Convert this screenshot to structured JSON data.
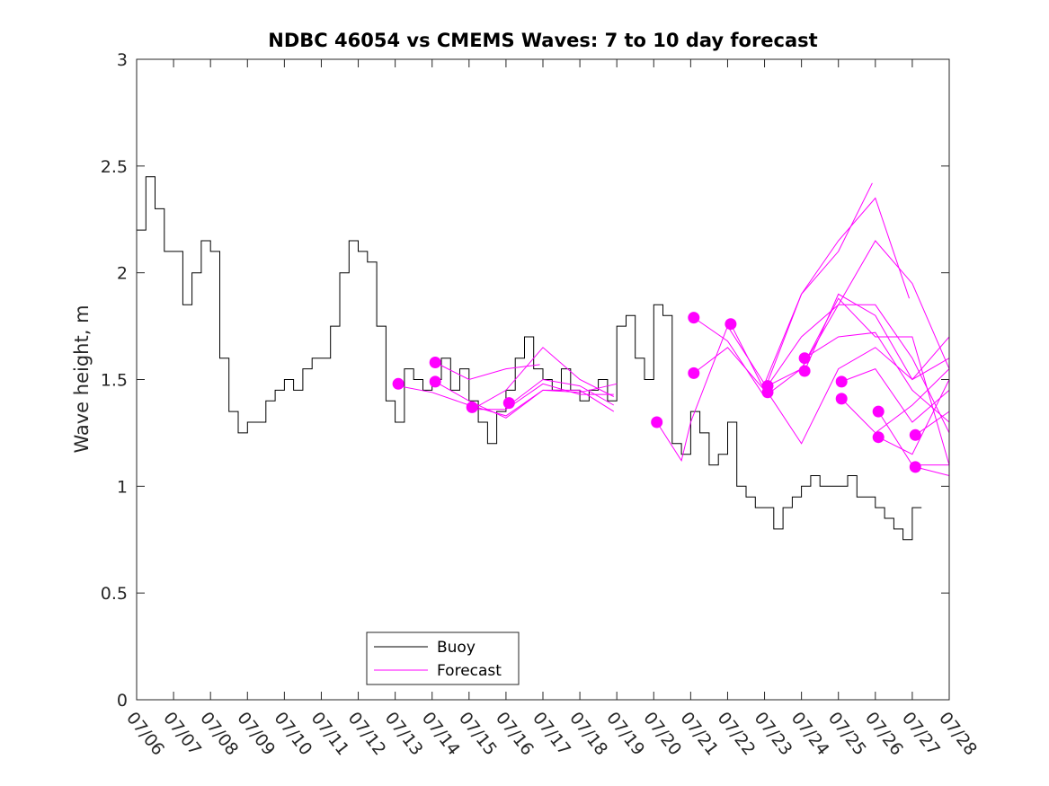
{
  "chart_data": {
    "type": "line",
    "title": "NDBC 46054 vs CMEMS Waves: 7 to 10 day forecast",
    "xlabel": "",
    "ylabel": "Wave height, m",
    "ylim": [
      0,
      3
    ],
    "xlim": [
      "07/06",
      "07/28"
    ],
    "x_ticks": [
      "07/06",
      "07/07",
      "07/08",
      "07/09",
      "07/10",
      "07/11",
      "07/12",
      "07/13",
      "07/14",
      "07/15",
      "07/16",
      "07/17",
      "07/18",
      "07/19",
      "07/20",
      "07/21",
      "07/22",
      "07/23",
      "07/24",
      "07/25",
      "07/26",
      "07/27",
      "07/28"
    ],
    "y_ticks": [
      "0",
      "0.5",
      "1",
      "1.5",
      "2",
      "2.5",
      "3"
    ],
    "grid": false,
    "legend_position": "bottom-left",
    "colors": {
      "buoy": "#000000",
      "forecast": "#ff00ff"
    },
    "series": [
      {
        "name": "Buoy",
        "x": [
          "07/06 00:00",
          "07/06 06:00",
          "07/06 12:00",
          "07/06 18:00",
          "07/07 00:00",
          "07/07 06:00",
          "07/07 12:00",
          "07/07 18:00",
          "07/08 00:00",
          "07/08 06:00",
          "07/08 12:00",
          "07/08 18:00",
          "07/09 00:00",
          "07/09 06:00",
          "07/09 12:00",
          "07/09 18:00",
          "07/10 00:00",
          "07/10 06:00",
          "07/10 12:00",
          "07/10 18:00",
          "07/11 00:00",
          "07/11 06:00",
          "07/11 12:00",
          "07/11 18:00",
          "07/12 00:00",
          "07/12 06:00",
          "07/12 12:00",
          "07/12 18:00",
          "07/13 00:00",
          "07/13 06:00",
          "07/13 12:00",
          "07/13 18:00",
          "07/14 00:00",
          "07/14 06:00",
          "07/14 12:00",
          "07/14 18:00",
          "07/15 00:00",
          "07/15 06:00",
          "07/15 12:00",
          "07/15 18:00",
          "07/16 00:00",
          "07/16 06:00",
          "07/16 12:00",
          "07/16 18:00",
          "07/17 00:00",
          "07/17 06:00",
          "07/17 12:00",
          "07/17 18:00",
          "07/18 00:00",
          "07/18 06:00",
          "07/18 12:00",
          "07/18 18:00",
          "07/19 00:00",
          "07/19 06:00",
          "07/19 12:00",
          "07/19 18:00",
          "07/20 00:00",
          "07/20 06:00",
          "07/20 12:00",
          "07/20 18:00",
          "07/21 00:00",
          "07/21 06:00",
          "07/21 12:00",
          "07/21 18:00",
          "07/22 00:00",
          "07/22 06:00",
          "07/22 12:00",
          "07/22 18:00",
          "07/23 00:00",
          "07/23 06:00",
          "07/23 12:00",
          "07/23 18:00",
          "07/24 00:00",
          "07/24 06:00",
          "07/24 12:00",
          "07/24 18:00",
          "07/25 00:00",
          "07/25 06:00",
          "07/25 12:00",
          "07/25 18:00",
          "07/26 00:00",
          "07/26 06:00",
          "07/26 12:00",
          "07/26 18:00",
          "07/27 00:00",
          "07/27 06:00"
        ],
        "values": [
          2.2,
          2.45,
          2.3,
          2.1,
          2.1,
          1.85,
          2.0,
          2.15,
          2.1,
          1.6,
          1.35,
          1.25,
          1.3,
          1.3,
          1.4,
          1.45,
          1.5,
          1.45,
          1.55,
          1.6,
          1.6,
          1.75,
          2.0,
          2.15,
          2.1,
          2.05,
          1.75,
          1.4,
          1.3,
          1.55,
          1.5,
          1.45,
          1.5,
          1.6,
          1.45,
          1.55,
          1.4,
          1.3,
          1.2,
          1.35,
          1.45,
          1.6,
          1.7,
          1.55,
          1.5,
          1.45,
          1.55,
          1.45,
          1.4,
          1.45,
          1.5,
          1.4,
          1.75,
          1.8,
          1.6,
          1.5,
          1.85,
          1.8,
          1.2,
          1.15,
          1.35,
          1.25,
          1.1,
          1.15,
          1.3,
          1.0,
          0.95,
          0.9,
          0.9,
          0.8,
          0.9,
          0.95,
          1.0,
          1.05,
          1.0,
          1.0,
          1.0,
          1.05,
          0.95,
          0.95,
          0.9,
          0.85,
          0.8,
          0.75,
          0.9,
          0.9
        ]
      },
      {
        "name": "Forecast",
        "runs": [
          {
            "x": [
              "07/13 02:00",
              "07/14 00:00",
              "07/15 00:00",
              "07/16 00:00",
              "07/17 00:00",
              "07/18 00:00",
              "07/18 22:00"
            ],
            "values": [
              1.47,
              1.44,
              1.38,
              1.33,
              1.45,
              1.45,
              1.35
            ]
          },
          {
            "x": [
              "07/14 02:00",
              "07/15 00:00",
              "07/16 00:00",
              "07/16 22:00"
            ],
            "values": [
              1.58,
              1.5,
              1.55,
              1.57
            ]
          },
          {
            "x": [
              "07/14 02:00",
              "07/15 00:00",
              "07/16 00:00",
              "07/17 00:00",
              "07/18 00:00",
              "07/19 00:00"
            ],
            "values": [
              1.49,
              1.4,
              1.32,
              1.45,
              1.44,
              1.48
            ]
          },
          {
            "x": [
              "07/15 02:00",
              "07/16 00:00",
              "07/17 00:00",
              "07/18 00:00",
              "07/18 22:00"
            ],
            "values": [
              1.36,
              1.36,
              1.48,
              1.43,
              1.43
            ]
          },
          {
            "x": [
              "07/15 02:00",
              "07/16 00:00",
              "07/17 00:00",
              "07/18 00:00",
              "07/18 22:00"
            ],
            "values": [
              1.36,
              1.45,
              1.65,
              1.5,
              1.42
            ]
          },
          {
            "x": [
              "07/16 02:00",
              "07/17 00:00",
              "07/18 00:00",
              "07/18 22:00"
            ],
            "values": [
              1.38,
              1.5,
              1.47,
              1.38
            ]
          },
          {
            "x": [
              "07/20 02:00",
              "07/20 18:00",
              "07/21 00:00",
              "07/22 00:00",
              "07/23 00:00",
              "07/24 00:00",
              "07/25 00:00",
              "07/26 00:00",
              "07/26 22:00"
            ],
            "values": [
              1.3,
              1.12,
              1.3,
              1.75,
              1.48,
              1.9,
              2.15,
              2.35,
              1.88
            ]
          },
          {
            "x": [
              "07/21 02:00",
              "07/22 00:00",
              "07/23 00:00",
              "07/24 00:00",
              "07/25 00:00",
              "07/26 00:00",
              "07/27 00:00",
              "07/28 00:00"
            ],
            "values": [
              1.79,
              1.68,
              1.42,
              1.55,
              1.85,
              2.15,
              1.95,
              1.55
            ]
          },
          {
            "x": [
              "07/21 02:00",
              "07/22 00:00",
              "07/23 00:00",
              "07/24 00:00",
              "07/25 00:00",
              "07/25 22:00"
            ],
            "values": [
              1.53,
              1.65,
              1.45,
              1.9,
              2.1,
              2.42
            ]
          },
          {
            "x": [
              "07/22 02:00",
              "07/23 00:00",
              "07/24 00:00",
              "07/25 00:00",
              "07/26 00:00",
              "07/27 00:00",
              "07/28 00:00"
            ],
            "values": [
              1.76,
              1.45,
              1.7,
              1.85,
              1.85,
              1.6,
              1.25
            ]
          },
          {
            "x": [
              "07/23 02:00",
              "07/24 00:00",
              "07/25 00:00",
              "07/26 00:00",
              "07/27 00:00",
              "07/28 00:00"
            ],
            "values": [
              1.47,
              1.55,
              1.88,
              1.7,
              1.7,
              1.1
            ]
          },
          {
            "x": [
              "07/23 02:00",
              "07/24 00:00",
              "07/25 00:00",
              "07/26 00:00",
              "07/27 00:00",
              "07/28 00:00"
            ],
            "values": [
              1.44,
              1.2,
              1.55,
              1.65,
              1.5,
              1.6
            ]
          },
          {
            "x": [
              "07/24 02:00",
              "07/25 00:00",
              "07/26 00:00",
              "07/27 00:00",
              "07/28 00:00"
            ],
            "values": [
              1.6,
              1.7,
              1.72,
              1.45,
              1.3
            ]
          },
          {
            "x": [
              "07/24 02:00",
              "07/25 00:00",
              "07/26 00:00",
              "07/27 00:00",
              "07/28 00:00"
            ],
            "values": [
              1.54,
              1.9,
              1.8,
              1.5,
              1.7
            ]
          },
          {
            "x": [
              "07/25 02:00",
              "07/26 00:00",
              "07/27 00:00",
              "07/28 00:00"
            ],
            "values": [
              1.49,
              1.55,
              1.3,
              1.45
            ]
          },
          {
            "x": [
              "07/25 02:00",
              "07/26 00:00",
              "07/27 00:00",
              "07/28 00:00"
            ],
            "values": [
              1.41,
              1.25,
              1.38,
              1.55
            ]
          },
          {
            "x": [
              "07/26 02:00",
              "07/27 00:00",
              "07/28 00:00"
            ],
            "values": [
              1.35,
              1.1,
              1.1
            ]
          },
          {
            "x": [
              "07/26 02:00",
              "07/27 00:00",
              "07/28 00:00"
            ],
            "values": [
              1.23,
              1.15,
              1.5
            ]
          },
          {
            "x": [
              "07/27 02:00",
              "07/28 00:00"
            ],
            "values": [
              1.24,
              1.35
            ]
          },
          {
            "x": [
              "07/27 02:00",
              "07/28 00:00"
            ],
            "values": [
              1.09,
              1.05
            ]
          }
        ],
        "markers_x": [
          "07/13 02:00",
          "07/14 02:00",
          "07/14 02:00",
          "07/15 02:00",
          "07/16 02:00",
          "07/20 02:00",
          "07/21 02:00",
          "07/21 02:00",
          "07/22 02:00",
          "07/23 02:00",
          "07/23 02:00",
          "07/24 02:00",
          "07/24 02:00",
          "07/25 02:00",
          "07/25 02:00",
          "07/26 02:00",
          "07/26 02:00",
          "07/27 02:00",
          "07/27 02:00"
        ],
        "markers": [
          1.48,
          1.58,
          1.49,
          1.37,
          1.39,
          1.3,
          1.79,
          1.53,
          1.76,
          1.47,
          1.44,
          1.6,
          1.54,
          1.49,
          1.41,
          1.35,
          1.23,
          1.24,
          1.09
        ]
      }
    ]
  }
}
